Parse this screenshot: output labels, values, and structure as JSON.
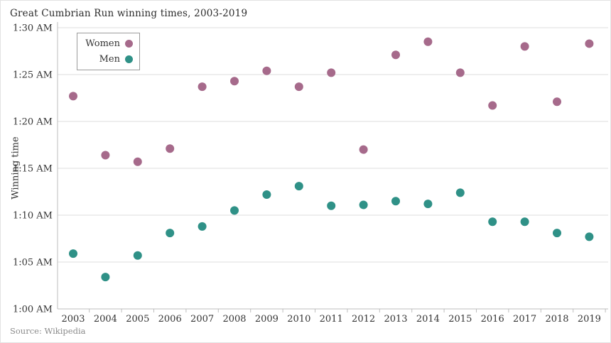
{
  "chart": {
    "title": "Great Cumbrian Run winning times, 2003-2019",
    "y_axis_title": "Winning time",
    "source": "Source: Wikipedia"
  },
  "chart_data": {
    "type": "scatter",
    "title": "Great Cumbrian Run winning times, 2003-2019",
    "xlabel": "",
    "ylabel": "Winning time",
    "x": [
      2003,
      2004,
      2005,
      2006,
      2007,
      2008,
      2009,
      2010,
      2011,
      2012,
      2013,
      2014,
      2015,
      2016,
      2017,
      2018,
      2019
    ],
    "value_unit": "minutes after 1:00 AM",
    "series": [
      {
        "name": "Women",
        "color": "#a66a8b",
        "values": [
          22.7,
          16.4,
          15.7,
          17.1,
          23.7,
          24.3,
          25.4,
          23.7,
          25.2,
          17.0,
          27.1,
          28.5,
          25.2,
          21.7,
          28.0,
          22.1,
          28.3
        ]
      },
      {
        "name": "Men",
        "color": "#2f9187",
        "values": [
          5.9,
          3.4,
          5.7,
          8.1,
          8.8,
          10.5,
          12.2,
          13.1,
          11.0,
          11.1,
          11.5,
          11.2,
          12.4,
          9.3,
          9.3,
          8.1,
          7.7
        ]
      }
    ],
    "y_ticks": [
      {
        "minutes": 0,
        "label": "1:00 AM"
      },
      {
        "minutes": 5,
        "label": "1:05 AM"
      },
      {
        "minutes": 10,
        "label": "1:10 AM"
      },
      {
        "minutes": 15,
        "label": "1:15 AM"
      },
      {
        "minutes": 20,
        "label": "1:20 AM"
      },
      {
        "minutes": 25,
        "label": "1:25 AM"
      },
      {
        "minutes": 30,
        "label": "1:30 AM"
      }
    ],
    "ylim_minutes": [
      0,
      30
    ],
    "grid": true,
    "legend_position": "top-left",
    "colors": {
      "gridline": "#dedede",
      "axis": "#bdbdbd",
      "tick_text": "#333333"
    }
  }
}
